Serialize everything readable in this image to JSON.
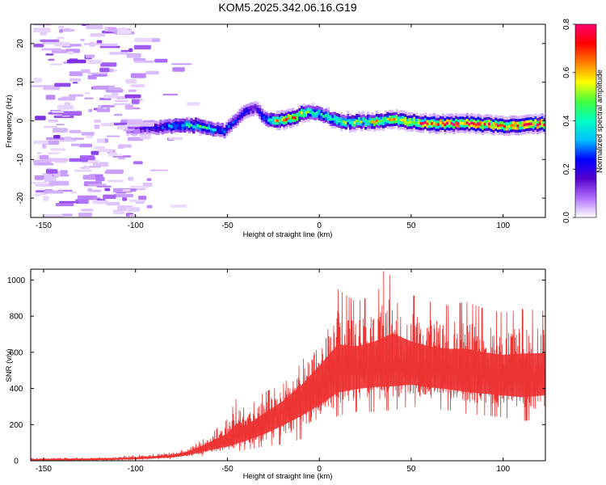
{
  "title": "KOM5.2025.342.06.16.G19",
  "chart_data": [
    {
      "type": "heatmap",
      "xlabel": "Height of straight line (km)",
      "ylabel": "Frequency (Hz)",
      "xlim": [
        -157,
        123
      ],
      "ylim": [
        -25,
        25
      ],
      "xticks": [
        -150,
        -100,
        -50,
        0,
        50,
        100
      ],
      "yticks": [
        -20,
        -10,
        0,
        10,
        20
      ],
      "colorbar": {
        "label": "Normalized spectral amplitude",
        "range": [
          0,
          0.8
        ],
        "ticks": [
          0.0,
          0.2,
          0.4,
          0.6,
          0.8
        ],
        "colors": [
          "#ffffff",
          "#b070ff",
          "#5500cc",
          "#0000ff",
          "#00c0ff",
          "#00ffc0",
          "#40ff40",
          "#ffff00",
          "#ff8000",
          "#ff0000",
          "#ff0070"
        ]
      },
      "ridge": {
        "description": "dominant frequency track",
        "x": [
          -105,
          -90,
          -75,
          -65,
          -58,
          -52,
          -48,
          -44,
          -40,
          -35,
          -30,
          -22,
          -15,
          -8,
          0,
          10,
          25,
          40,
          60,
          80,
          100,
          123
        ],
        "freq": [
          -2.5,
          -2,
          -1.5,
          -1.5,
          -2.5,
          -3,
          -1,
          1,
          2,
          3,
          0,
          0,
          0.5,
          2,
          1.5,
          -0.5,
          -0.5,
          0,
          -1,
          -1,
          -1.5,
          -1
        ],
        "amplitude": [
          0.1,
          0.2,
          0.35,
          0.4,
          0.3,
          0.25,
          0.25,
          0.2,
          0.2,
          0.15,
          0.3,
          0.6,
          0.6,
          0.45,
          0.35,
          0.45,
          0.5,
          0.55,
          0.65,
          0.7,
          0.65,
          0.7
        ]
      },
      "noise_region": "scattered low-amplitude patches from -157 to -105 km"
    },
    {
      "type": "line",
      "xlabel": "Height of straight line (km)",
      "ylabel": "SNR (v/v)",
      "xlim": [
        -157,
        123
      ],
      "ylim": [
        0,
        1060
      ],
      "xticks": [
        -150,
        -100,
        -50,
        0,
        50,
        100
      ],
      "yticks": [
        0,
        200,
        400,
        600,
        800,
        1000
      ],
      "color": "#ee3333",
      "envelope": {
        "x": [
          -157,
          -120,
          -100,
          -80,
          -70,
          -60,
          -50,
          -45,
          -40,
          -30,
          -20,
          -10,
          0,
          10,
          20,
          30,
          40,
          50,
          60,
          70,
          80,
          90,
          100,
          110,
          123
        ],
        "low": [
          0,
          0,
          5,
          10,
          20,
          30,
          40,
          50,
          60,
          80,
          90,
          120,
          170,
          250,
          270,
          270,
          280,
          300,
          290,
          280,
          260,
          250,
          240,
          220,
          230
        ],
        "high": [
          15,
          20,
          30,
          45,
          75,
          140,
          230,
          350,
          280,
          380,
          420,
          540,
          720,
          950,
          880,
          920,
          1050,
          920,
          880,
          860,
          880,
          840,
          820,
          840,
          830
        ],
        "median": [
          5,
          8,
          12,
          25,
          45,
          80,
          110,
          130,
          150,
          200,
          280,
          350,
          420,
          480,
          500,
          520,
          520,
          520,
          500,
          490,
          480,
          470,
          460,
          460,
          470
        ]
      },
      "peak": {
        "x": 35,
        "y": 1050
      }
    }
  ]
}
